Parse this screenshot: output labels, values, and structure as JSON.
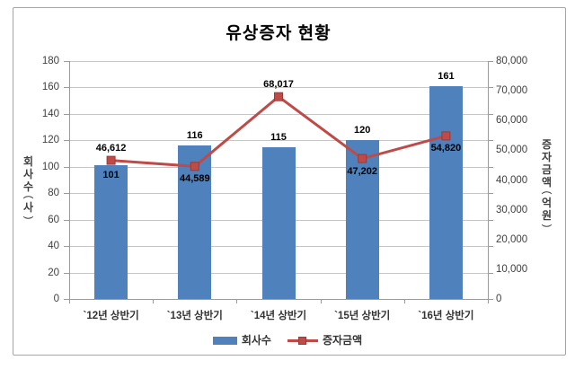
{
  "chart_data": {
    "type": "combo-bar-line",
    "title": "유상증자 현황",
    "categories": [
      "`12년 상반기",
      "`13년 상반기",
      "`14년 상반기",
      "`15년 상반기",
      "`16년 상반기"
    ],
    "series": [
      {
        "name": "회사수",
        "type": "bar",
        "axis": "left",
        "values": [
          101,
          116,
          115,
          120,
          161
        ],
        "labels": [
          "101",
          "116",
          "115",
          "120",
          "161"
        ],
        "label_placement": [
          "inside",
          "above",
          "above",
          "above",
          "above"
        ],
        "color": "#4f81bd"
      },
      {
        "name": "증자금액",
        "type": "line",
        "axis": "right",
        "values": [
          46612,
          44589,
          68017,
          47202,
          54820
        ],
        "labels": [
          "46,612",
          "44,589",
          "68,017",
          "47,202",
          "54,820"
        ],
        "label_placement": [
          "above",
          "below",
          "above",
          "below",
          "below"
        ],
        "color": "#be4b48",
        "marker": "square",
        "marker_border": "#9c3a38"
      }
    ],
    "axes": {
      "left": {
        "title": "회사수(사)",
        "min": 0,
        "max": 180,
        "step": 20,
        "tick_labels": [
          "0",
          "20",
          "40",
          "60",
          "80",
          "100",
          "120",
          "140",
          "160",
          "180"
        ]
      },
      "right": {
        "title": "증자금액(억원)",
        "min": 0,
        "max": 80000,
        "step": 10000,
        "tick_labels": [
          "0",
          "10,000",
          "20,000",
          "30,000",
          "40,000",
          "50,000",
          "60,000",
          "70,000",
          "80,000"
        ]
      }
    },
    "grid": true,
    "legend": {
      "position": "bottom",
      "items": [
        "회사수",
        "증자금액"
      ]
    },
    "colors": {
      "bar": "#4f81bd",
      "line": "#be4b48",
      "gridline": "#c6c6c6",
      "axis_line": "#9b9b9b",
      "frame_border": "#a6a6a6",
      "background": "#ffffff"
    }
  }
}
